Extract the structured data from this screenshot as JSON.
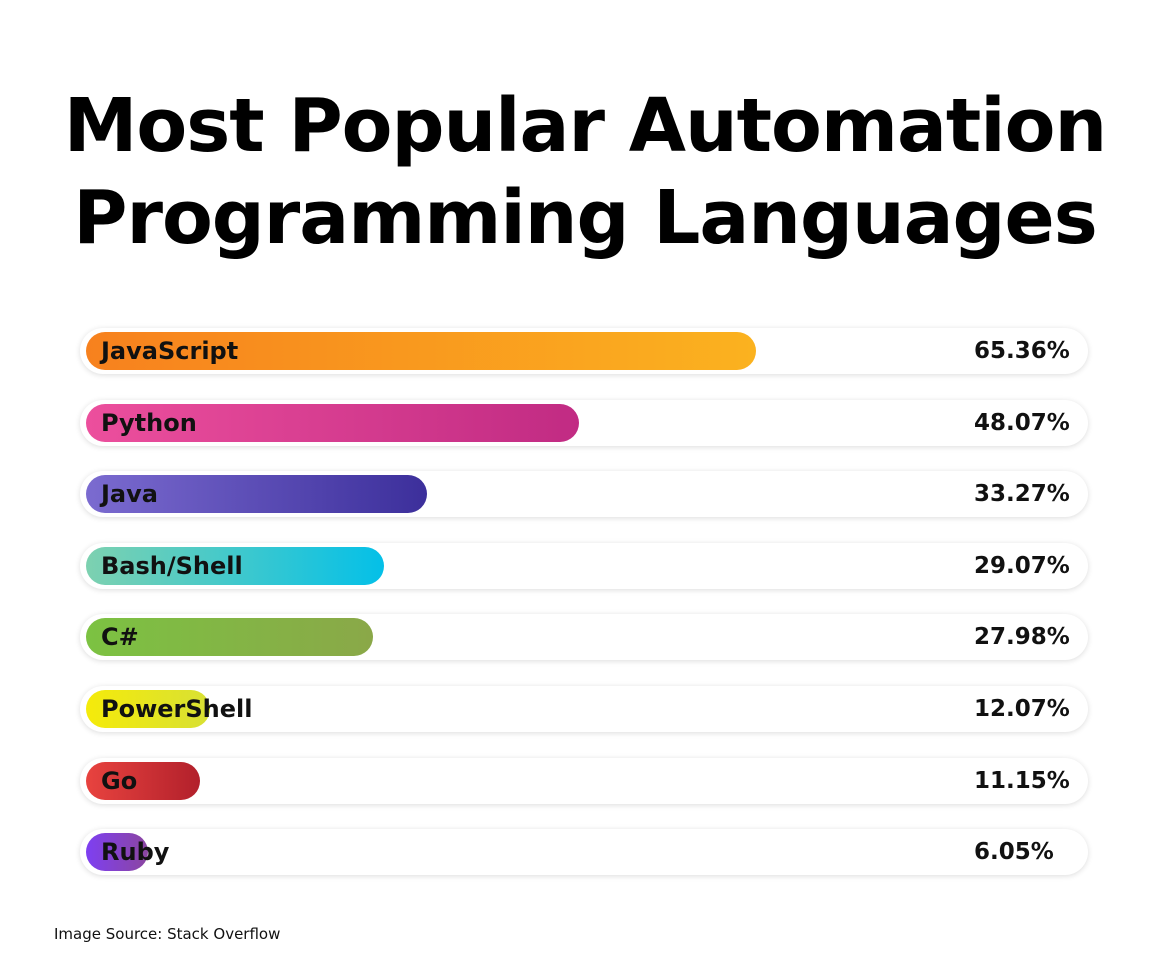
{
  "title_line1": "Most Popular Automation",
  "title_line2": "Programming Languages",
  "source": "Image Source: Stack Overflow",
  "chart_data": {
    "type": "bar",
    "orientation": "horizontal",
    "title": "Most Popular Automation Programming Languages",
    "categories": [
      "JavaScript",
      "Python",
      "Java",
      "Bash/Shell",
      "C#",
      "PowerShell",
      "Go",
      "Ruby"
    ],
    "values": [
      65.36,
      48.07,
      33.27,
      29.07,
      27.98,
      12.07,
      11.15,
      6.05
    ],
    "value_labels": [
      "65.36%",
      "48.07%",
      "33.27%",
      "29.07%",
      "27.98%",
      "12.07%",
      "11.15%",
      "6.05%"
    ],
    "colors": [
      [
        "#f7811e",
        "#fbb21f"
      ],
      [
        "#ec4f9d",
        "#c12b83"
      ],
      [
        "#7b6bd0",
        "#3c2f9b"
      ],
      [
        "#7dd1b0",
        "#04c0e8"
      ],
      [
        "#7cc242",
        "#8aa848"
      ],
      [
        "#f5eb0a",
        "#d8e034"
      ],
      [
        "#e8433f",
        "#b2202b"
      ],
      [
        "#7e3ff2",
        "#8b46a0"
      ]
    ],
    "grid": false,
    "legend": "none"
  }
}
